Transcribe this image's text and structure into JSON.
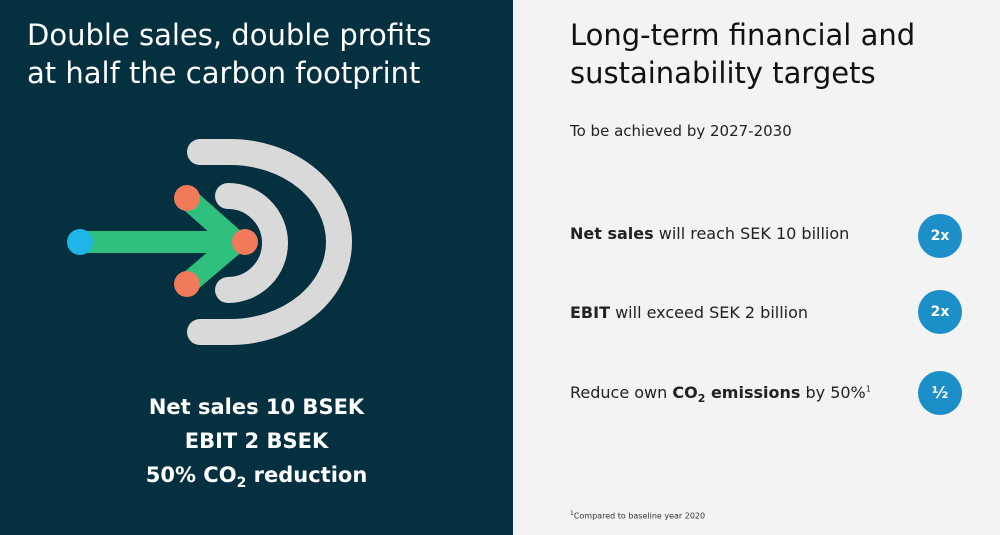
{
  "left": {
    "title": [
      "Double sales, double profits",
      "at half the carbon footprint"
    ],
    "summary": {
      "line1": "Net sales 10 BSEK",
      "line2": "EBIT 2 BSEK",
      "line3": {
        "before": "50% CO",
        "sub": "2",
        "after": " reduction"
      }
    }
  },
  "right": {
    "title": [
      "Long-term financial and",
      "sustainability targets"
    ],
    "subtitle": "To be achieved by 2027-2030",
    "targets": [
      {
        "bold": "Net sales",
        "text": " will reach SEK 10 billion",
        "badge": "2x"
      },
      {
        "bold": "EBIT",
        "text": " will exceed SEK 2 billion",
        "badge": "2x"
      },
      {
        "before": "Reduce own ",
        "bold": "CO",
        "sub": "2",
        "bold_after": " emissions",
        "text": " by 50%",
        "sup": "1",
        "badge": "½"
      }
    ],
    "footnote": {
      "sup": "1",
      "text": "Compared to baseline year 2020"
    }
  }
}
